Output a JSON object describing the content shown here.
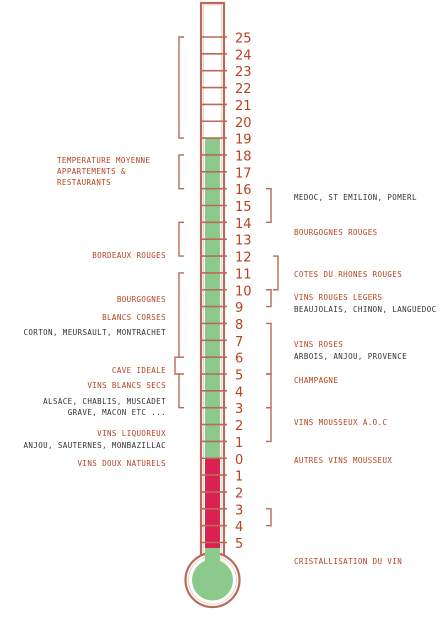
{
  "diagram": {
    "colors": {
      "frame": "#b86b56",
      "scale_text": "#b8421e",
      "label_red": "#b8421e",
      "label_dark": "#333333",
      "fill_green": "#8cc98c",
      "fill_red": "#d9224f"
    },
    "scale_top": [
      "25",
      "24",
      "23",
      "22",
      "21",
      "20",
      "19",
      "18",
      "17",
      "16",
      "15",
      "14",
      "13",
      "12",
      "11",
      "10",
      "9",
      "8",
      "7",
      "6",
      "5",
      "4",
      "3",
      "2",
      "1",
      "0"
    ],
    "scale_bottom": [
      "1",
      "2",
      "3",
      "4",
      "5"
    ],
    "left_labels": {
      "temp_title": [
        "TEMPERATURE MOYENNE",
        "APPARTEMENTS &",
        "RESTAURANTS"
      ],
      "bordeaux": "BORDEAUX ROUGES",
      "bourgognes": "BOURGOGNES",
      "blancs_corses": "BLANCS CORSES",
      "corton": "CORTON, MEURSAULT, MONTRACHET",
      "cave": "CAVE IDEALE",
      "blancs_secs": "VINS BLANCS SECS",
      "alsace": "ALSACE, CHABLIS, MUSCADET",
      "grave": "GRAVE, MACON ETC ...",
      "liquoreux": "VINS LIQUOREUX",
      "anjou": "ANJOU, SAUTERNES, MONBAZILLAC",
      "doux": "VINS DOUX NATURELS"
    },
    "right_labels": {
      "medoc": "MEDOC, ST EMILION, POMERL",
      "bourgognes_rouges": "BOURGOGNES ROUGES",
      "cotes": "COTES DU RHONES ROUGES",
      "rouges_legers": "VINS ROUGES LEGERS",
      "beaujolais": "BEAUJOLAIS, CHINON, LANGUEDOC",
      "roses": "VINS ROSES",
      "arbois": "ARBOIS, ANJOU, PROVENCE",
      "champagne": "CHAMPAGNE",
      "mousseux_aoc": "VINS MOUSSEUX A.O.C",
      "autres": "AUTRES VINS MOUSSEUX",
      "cristal": "CRISTALLISATION DU VIN"
    }
  }
}
